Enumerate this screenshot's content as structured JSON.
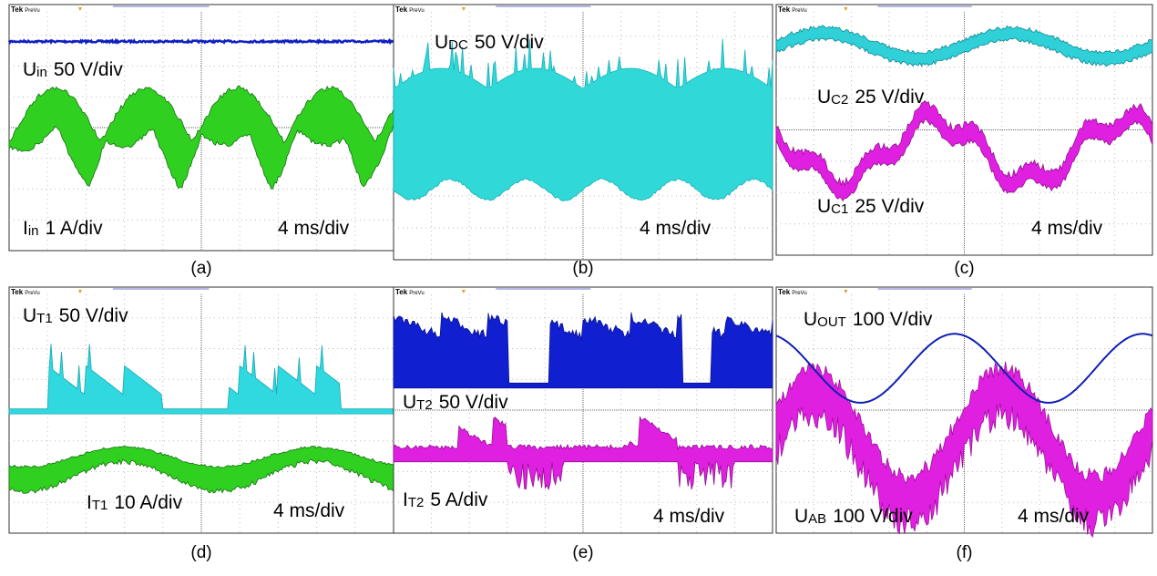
{
  "panels": [
    {
      "brand": "Tek",
      "mode": "PreVu",
      "caption": "(a)",
      "labels": [
        {
          "symbol": "U",
          "sub": "in",
          "scale": "50 V/div"
        },
        {
          "symbol": "I",
          "sub": "in",
          "scale": "1 A/div"
        }
      ],
      "timebase": "4 ms/div"
    },
    {
      "brand": "Tek",
      "mode": "PreVu",
      "caption": "(b)",
      "labels": [
        {
          "symbol": "U",
          "sub": "DC",
          "scale": "50 V/div"
        }
      ],
      "timebase": "4 ms/div"
    },
    {
      "brand": "Tek",
      "mode": "PreVu",
      "caption": "(c)",
      "labels": [
        {
          "symbol": "U",
          "sub": "C2",
          "scale": "25 V/div"
        },
        {
          "symbol": "U",
          "sub": "C1",
          "scale": "25 V/div"
        }
      ],
      "timebase": "4 ms/div"
    },
    {
      "brand": "Tek",
      "mode": "PreVu",
      "caption": "(d)",
      "labels": [
        {
          "symbol": "U",
          "sub": "T1",
          "scale": "50 V/div"
        },
        {
          "symbol": "I",
          "sub": "T1",
          "scale": "10 A/div"
        }
      ],
      "timebase": "4 ms/div"
    },
    {
      "brand": "Tek",
      "mode": "PreVu",
      "caption": "(e)",
      "labels": [
        {
          "symbol": "U",
          "sub": "T2",
          "scale": "50 V/div"
        },
        {
          "symbol": "I",
          "sub": "T2",
          "scale": "5 A/div"
        }
      ],
      "timebase": "4 ms/div"
    },
    {
      "brand": "Tek",
      "mode": "PreVu",
      "caption": "(f)",
      "labels": [
        {
          "symbol": "U",
          "sub": "OUT",
          "scale": "100 V/div"
        },
        {
          "symbol": "U",
          "sub": "AB",
          "scale": "100 V/div"
        }
      ],
      "timebase": "4 ms/div"
    }
  ]
}
